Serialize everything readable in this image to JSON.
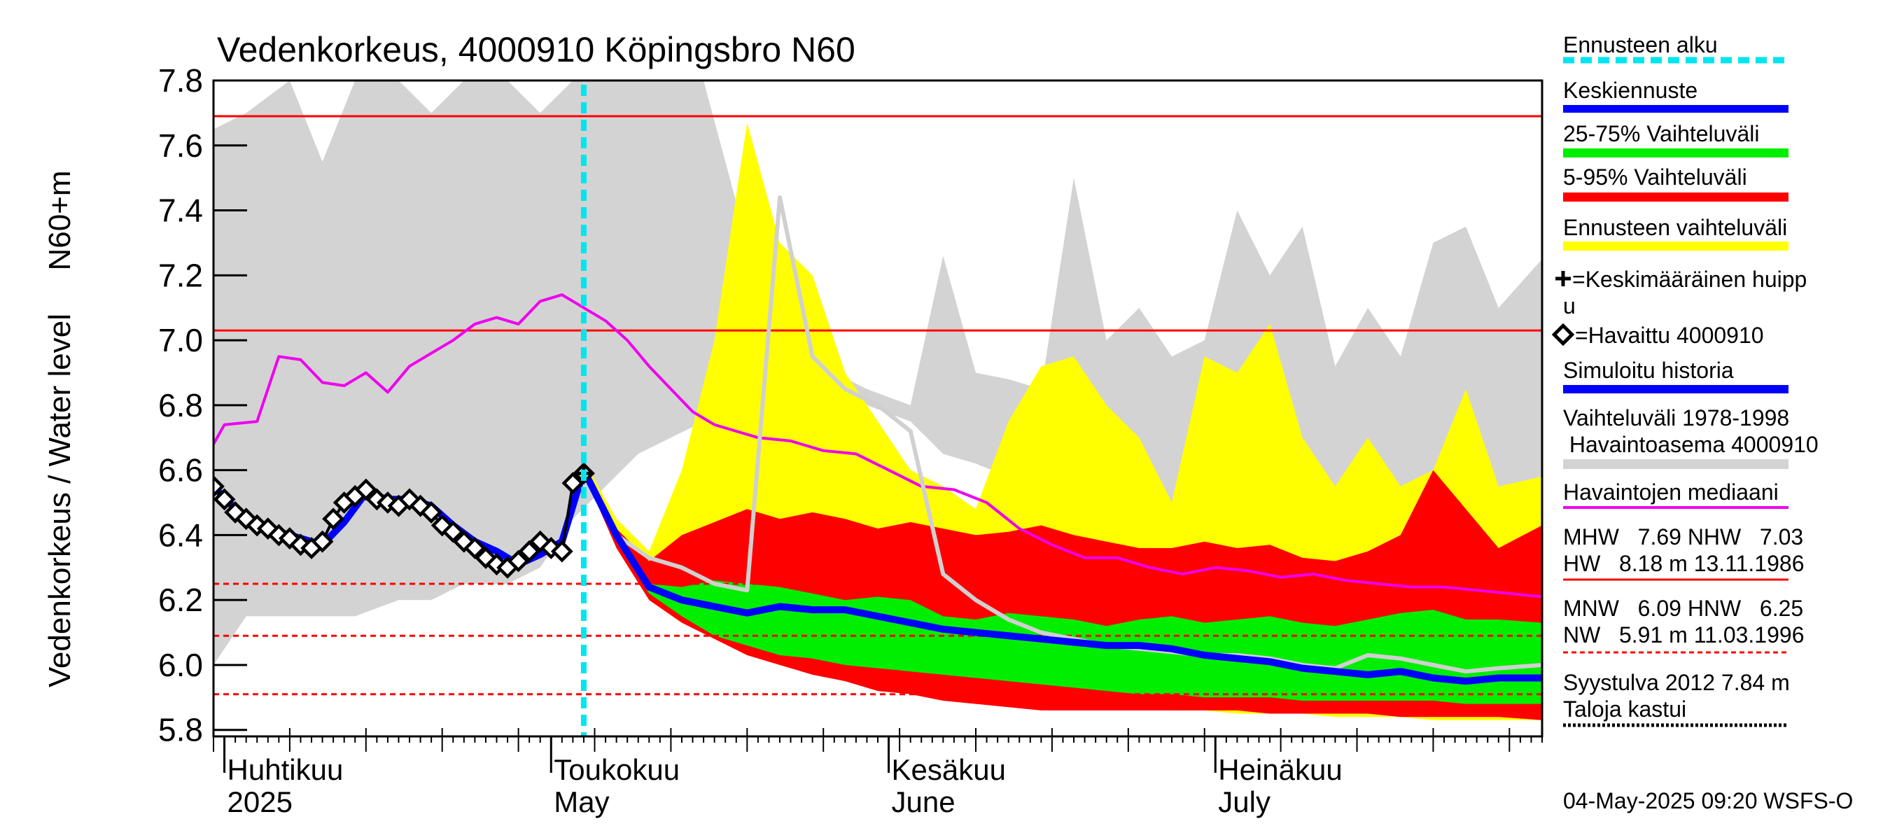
{
  "chart_data": {
    "type": "area",
    "title": "Vedenkorkeus, 4000910 Köpingsbro N60",
    "ylabel": "Vedenkorkeus / Water level",
    "ylabel_unit": "N60+m",
    "ylim": [
      5.78,
      7.8
    ],
    "yticks": [
      5.8,
      6.0,
      6.2,
      6.4,
      6.6,
      6.8,
      7.0,
      7.2,
      7.4,
      7.6,
      7.8
    ],
    "ytick_labels": [
      "5.8",
      "6.0",
      "6.2",
      "6.4",
      "6.6",
      "6.8",
      "7.0",
      "7.2",
      "7.4",
      "7.6",
      "7.8"
    ],
    "x_range": [
      "2025-03-31",
      "2025-07-31"
    ],
    "forecast_start": "2025-05-04",
    "x_month_labels": [
      {
        "date": "2025-04-01",
        "fi": "Huhtikuu",
        "en": "2025"
      },
      {
        "date": "2025-05-01",
        "fi": "Toukokuu",
        "en": "May"
      },
      {
        "date": "2025-06-01",
        "fi": "Kesäkuu",
        "en": "June"
      },
      {
        "date": "2025-07-01",
        "fi": "Heinäkuu",
        "en": "July"
      }
    ],
    "reference_lines": [
      {
        "label": "MHW",
        "value": 7.69,
        "style": "solid"
      },
      {
        "label": "NHW",
        "value": 7.03,
        "style": "solid"
      },
      {
        "label": "HNW",
        "value": 6.25,
        "style": "dashed"
      },
      {
        "label": "MNW",
        "value": 6.09,
        "style": "dashed"
      },
      {
        "label": "NW",
        "value": 5.91,
        "style": "dashed"
      }
    ],
    "series": [
      {
        "name": "Vaihteluväli 1978-1998 Havaintoasema 4000910",
        "color": "#d3d3d3",
        "x": [
          "2025-03-31",
          "2025-04-03",
          "2025-04-07",
          "2025-04-10",
          "2025-04-13",
          "2025-04-17",
          "2025-04-20",
          "2025-04-23",
          "2025-04-27",
          "2025-04-30",
          "2025-05-03",
          "2025-05-06",
          "2025-05-09",
          "2025-05-12",
          "2025-05-15",
          "2025-05-19",
          "2025-05-23",
          "2025-05-27",
          "2025-05-30",
          "2025-06-03",
          "2025-06-06",
          "2025-06-09",
          "2025-06-12",
          "2025-06-15",
          "2025-06-18",
          "2025-06-21",
          "2025-06-24",
          "2025-06-27",
          "2025-06-30",
          "2025-07-03",
          "2025-07-06",
          "2025-07-09",
          "2025-07-12",
          "2025-07-15",
          "2025-07-18",
          "2025-07-21",
          "2025-07-24",
          "2025-07-27",
          "2025-07-31"
        ],
        "upper": [
          7.65,
          7.7,
          7.8,
          7.55,
          7.8,
          7.8,
          7.7,
          7.8,
          7.8,
          7.7,
          7.8,
          7.8,
          7.8,
          7.8,
          7.8,
          7.3,
          7.05,
          6.9,
          6.85,
          6.8,
          7.26,
          6.9,
          6.88,
          6.85,
          7.5,
          7.0,
          7.1,
          6.95,
          7.0,
          7.4,
          7.2,
          7.35,
          6.92,
          7.1,
          6.95,
          7.3,
          7.35,
          7.1,
          7.25
        ],
        "lower": [
          6.0,
          6.15,
          6.15,
          6.15,
          6.15,
          6.2,
          6.2,
          6.25,
          6.25,
          6.3,
          6.45,
          6.55,
          6.65,
          6.7,
          6.75,
          6.78,
          6.78,
          6.8,
          6.8,
          6.75,
          6.65,
          6.62,
          6.58,
          6.55,
          6.52,
          6.5,
          6.48,
          6.46,
          6.45,
          6.44,
          6.44,
          6.43,
          6.42,
          6.41,
          6.4,
          6.4,
          6.4,
          6.4,
          6.4
        ]
      },
      {
        "name": "Ennusteen vaihteluväli",
        "color": "#ffff00",
        "x": [
          "2025-05-04",
          "2025-05-07",
          "2025-05-10",
          "2025-05-13",
          "2025-05-16",
          "2025-05-19",
          "2025-05-22",
          "2025-05-25",
          "2025-05-28",
          "2025-05-31",
          "2025-06-03",
          "2025-06-06",
          "2025-06-09",
          "2025-06-12",
          "2025-06-15",
          "2025-06-18",
          "2025-06-21",
          "2025-06-24",
          "2025-06-27",
          "2025-06-30",
          "2025-07-03",
          "2025-07-06",
          "2025-07-09",
          "2025-07-12",
          "2025-07-15",
          "2025-07-18",
          "2025-07-21",
          "2025-07-24",
          "2025-07-27",
          "2025-07-31"
        ],
        "upper": [
          6.63,
          6.45,
          6.35,
          6.6,
          7.0,
          7.67,
          7.3,
          7.2,
          6.9,
          6.75,
          6.6,
          6.55,
          6.48,
          6.75,
          6.92,
          6.95,
          6.8,
          6.7,
          6.5,
          6.95,
          6.9,
          7.05,
          6.7,
          6.55,
          6.7,
          6.55,
          6.6,
          6.85,
          6.55,
          6.58
        ],
        "lower": [
          6.6,
          6.38,
          6.22,
          6.15,
          6.1,
          6.06,
          6.03,
          6.01,
          5.98,
          5.96,
          5.94,
          5.92,
          5.91,
          5.9,
          5.89,
          5.88,
          5.87,
          5.87,
          5.86,
          5.86,
          5.85,
          5.85,
          5.85,
          5.84,
          5.84,
          5.84,
          5.83,
          5.83,
          5.83,
          5.83
        ]
      },
      {
        "name": "5-95% Vaihteluväli",
        "color": "#ff0000",
        "x": [
          "2025-05-04",
          "2025-05-07",
          "2025-05-10",
          "2025-05-13",
          "2025-05-16",
          "2025-05-19",
          "2025-05-22",
          "2025-05-25",
          "2025-05-28",
          "2025-05-31",
          "2025-06-03",
          "2025-06-06",
          "2025-06-09",
          "2025-06-12",
          "2025-06-15",
          "2025-06-18",
          "2025-06-21",
          "2025-06-24",
          "2025-06-27",
          "2025-06-30",
          "2025-07-03",
          "2025-07-06",
          "2025-07-09",
          "2025-07-12",
          "2025-07-15",
          "2025-07-18",
          "2025-07-21",
          "2025-07-24",
          "2025-07-27",
          "2025-07-31"
        ],
        "upper": [
          6.61,
          6.42,
          6.32,
          6.4,
          6.44,
          6.48,
          6.45,
          6.47,
          6.45,
          6.42,
          6.44,
          6.42,
          6.4,
          6.41,
          6.43,
          6.4,
          6.38,
          6.36,
          6.36,
          6.38,
          6.36,
          6.37,
          6.33,
          6.32,
          6.35,
          6.4,
          6.6,
          6.48,
          6.36,
          6.43
        ],
        "lower": [
          6.59,
          6.36,
          6.2,
          6.13,
          6.08,
          6.03,
          6.0,
          5.97,
          5.95,
          5.92,
          5.91,
          5.89,
          5.88,
          5.87,
          5.86,
          5.86,
          5.86,
          5.86,
          5.86,
          5.86,
          5.86,
          5.85,
          5.85,
          5.85,
          5.85,
          5.84,
          5.84,
          5.84,
          5.84,
          5.83
        ]
      },
      {
        "name": "25-75% Vaihteluväli",
        "color": "#00ee00",
        "x": [
          "2025-05-04",
          "2025-05-07",
          "2025-05-10",
          "2025-05-13",
          "2025-05-16",
          "2025-05-19",
          "2025-05-22",
          "2025-05-25",
          "2025-05-28",
          "2025-05-31",
          "2025-06-03",
          "2025-06-06",
          "2025-06-09",
          "2025-06-12",
          "2025-06-15",
          "2025-06-18",
          "2025-06-21",
          "2025-06-24",
          "2025-06-27",
          "2025-06-30",
          "2025-07-03",
          "2025-07-06",
          "2025-07-09",
          "2025-07-12",
          "2025-07-15",
          "2025-07-18",
          "2025-07-21",
          "2025-07-24",
          "2025-07-27",
          "2025-07-31"
        ],
        "upper": [
          6.6,
          6.4,
          6.25,
          6.24,
          6.26,
          6.25,
          6.24,
          6.22,
          6.2,
          6.21,
          6.2,
          6.15,
          6.14,
          6.16,
          6.15,
          6.14,
          6.12,
          6.14,
          6.15,
          6.13,
          6.14,
          6.15,
          6.13,
          6.12,
          6.14,
          6.16,
          6.17,
          6.14,
          6.14,
          6.13
        ],
        "lower": [
          6.6,
          6.38,
          6.22,
          6.15,
          6.09,
          6.06,
          6.03,
          6.02,
          6.0,
          5.99,
          5.98,
          5.97,
          5.96,
          5.95,
          5.94,
          5.93,
          5.92,
          5.91,
          5.91,
          5.9,
          5.9,
          5.9,
          5.89,
          5.89,
          5.89,
          5.89,
          5.89,
          5.88,
          5.88,
          5.88
        ]
      },
      {
        "name": "Havaintojen mediaani",
        "color": "#ee00ee",
        "x": [
          "2025-03-31",
          "2025-04-01",
          "2025-04-04",
          "2025-04-06",
          "2025-04-08",
          "2025-04-10",
          "2025-04-12",
          "2025-04-14",
          "2025-04-16",
          "2025-04-18",
          "2025-04-20",
          "2025-04-22",
          "2025-04-24",
          "2025-04-26",
          "2025-04-28",
          "2025-04-30",
          "2025-05-02",
          "2025-05-04",
          "2025-05-06",
          "2025-05-08",
          "2025-05-10",
          "2025-05-12",
          "2025-05-14",
          "2025-05-16",
          "2025-05-18",
          "2025-05-20",
          "2025-05-23",
          "2025-05-26",
          "2025-05-29",
          "2025-06-01",
          "2025-06-04",
          "2025-06-07",
          "2025-06-10",
          "2025-06-13",
          "2025-06-16",
          "2025-06-19",
          "2025-06-22",
          "2025-06-25",
          "2025-06-28",
          "2025-07-01",
          "2025-07-04",
          "2025-07-07",
          "2025-07-10",
          "2025-07-13",
          "2025-07-16",
          "2025-07-19",
          "2025-07-22",
          "2025-07-25",
          "2025-07-28",
          "2025-07-31"
        ],
        "y": [
          6.68,
          6.74,
          6.75,
          6.95,
          6.94,
          6.87,
          6.86,
          6.9,
          6.84,
          6.92,
          6.96,
          7.0,
          7.05,
          7.07,
          7.05,
          7.12,
          7.14,
          7.1,
          7.06,
          7.0,
          6.92,
          6.85,
          6.78,
          6.74,
          6.72,
          6.7,
          6.69,
          6.66,
          6.65,
          6.6,
          6.55,
          6.54,
          6.5,
          6.42,
          6.37,
          6.33,
          6.33,
          6.3,
          6.28,
          6.3,
          6.29,
          6.27,
          6.28,
          6.26,
          6.25,
          6.24,
          6.24,
          6.23,
          6.22,
          6.21
        ]
      },
      {
        "name": "Simuloitu historia",
        "color": "#0000ff",
        "x": [
          "2025-03-31",
          "2025-04-02",
          "2025-04-04",
          "2025-04-06",
          "2025-04-08",
          "2025-04-10",
          "2025-04-12",
          "2025-04-14",
          "2025-04-16",
          "2025-04-18",
          "2025-04-20",
          "2025-04-22",
          "2025-04-24",
          "2025-04-26",
          "2025-04-28",
          "2025-04-30",
          "2025-05-02",
          "2025-05-04"
        ],
        "y": [
          6.55,
          6.48,
          6.44,
          6.41,
          6.39,
          6.37,
          6.44,
          6.53,
          6.51,
          6.51,
          6.49,
          6.43,
          6.38,
          6.35,
          6.31,
          6.34,
          6.38,
          6.6
        ]
      },
      {
        "name": "Keskiennuste",
        "color": "#0000ff",
        "x": [
          "2025-05-04",
          "2025-05-07",
          "2025-05-10",
          "2025-05-13",
          "2025-05-16",
          "2025-05-19",
          "2025-05-22",
          "2025-05-25",
          "2025-05-28",
          "2025-05-31",
          "2025-06-03",
          "2025-06-06",
          "2025-06-09",
          "2025-06-12",
          "2025-06-15",
          "2025-06-18",
          "2025-06-21",
          "2025-06-24",
          "2025-06-27",
          "2025-06-30",
          "2025-07-03",
          "2025-07-06",
          "2025-07-09",
          "2025-07-12",
          "2025-07-15",
          "2025-07-18",
          "2025-07-21",
          "2025-07-24",
          "2025-07-27",
          "2025-07-31"
        ],
        "y": [
          6.6,
          6.4,
          6.24,
          6.2,
          6.18,
          6.16,
          6.18,
          6.17,
          6.17,
          6.15,
          6.13,
          6.11,
          6.1,
          6.09,
          6.08,
          6.07,
          6.06,
          6.06,
          6.05,
          6.03,
          6.02,
          6.01,
          5.99,
          5.98,
          5.97,
          5.98,
          5.96,
          5.95,
          5.96,
          5.96
        ]
      },
      {
        "name": "Simulated median (grey)",
        "color": "#d0d0d0",
        "x": [
          "2025-05-04",
          "2025-05-07",
          "2025-05-10",
          "2025-05-13",
          "2025-05-16",
          "2025-05-19",
          "2025-05-22",
          "2025-05-25",
          "2025-05-28",
          "2025-05-31",
          "2025-06-03",
          "2025-06-06",
          "2025-06-09",
          "2025-06-12",
          "2025-06-15",
          "2025-06-18",
          "2025-06-21",
          "2025-06-24",
          "2025-06-27",
          "2025-06-30",
          "2025-07-03",
          "2025-07-06",
          "2025-07-09",
          "2025-07-12",
          "2025-07-15",
          "2025-07-18",
          "2025-07-21",
          "2025-07-24",
          "2025-07-27",
          "2025-07-31"
        ],
        "y": [
          6.6,
          6.4,
          6.33,
          6.3,
          6.25,
          6.23,
          7.44,
          6.95,
          6.85,
          6.8,
          6.72,
          6.28,
          6.2,
          6.14,
          6.1,
          6.08,
          6.06,
          6.05,
          6.04,
          6.03,
          6.03,
          6.02,
          6.0,
          5.99,
          6.03,
          6.02,
          6.0,
          5.98,
          5.99,
          6.0
        ]
      },
      {
        "name": "Havaittu 4000910",
        "color": "#000000",
        "x": [
          "2025-03-31",
          "2025-04-01",
          "2025-04-02",
          "2025-04-03",
          "2025-04-04",
          "2025-04-05",
          "2025-04-06",
          "2025-04-07",
          "2025-04-08",
          "2025-04-09",
          "2025-04-10",
          "2025-04-11",
          "2025-04-12",
          "2025-04-13",
          "2025-04-14",
          "2025-04-15",
          "2025-04-16",
          "2025-04-17",
          "2025-04-18",
          "2025-04-19",
          "2025-04-20",
          "2025-04-21",
          "2025-04-22",
          "2025-04-23",
          "2025-04-24",
          "2025-04-25",
          "2025-04-26",
          "2025-04-27",
          "2025-04-28",
          "2025-04-29",
          "2025-04-30",
          "2025-05-01",
          "2025-05-02",
          "2025-05-03",
          "2025-05-04"
        ],
        "y": [
          6.55,
          6.51,
          6.47,
          6.45,
          6.43,
          6.42,
          6.4,
          6.39,
          6.37,
          6.36,
          6.38,
          6.45,
          6.5,
          6.52,
          6.54,
          6.51,
          6.5,
          6.49,
          6.51,
          6.49,
          6.47,
          6.43,
          6.41,
          6.38,
          6.36,
          6.33,
          6.31,
          6.3,
          6.32,
          6.35,
          6.38,
          6.36,
          6.35,
          6.56,
          6.59
        ]
      }
    ],
    "peak_marker": {
      "name": "Keskimääräinen huippu",
      "x": "2025-05-04",
      "y": 6.59
    }
  },
  "legend": {
    "forecast_start": "Ennusteen alku",
    "mean_forecast": "Keskiennuste",
    "range_25_75": "25-75% Vaihteluväli",
    "range_5_95": "5-95% Vaihteluväli",
    "forecast_range": "Ennusteen vaihteluväli",
    "avg_peak_line1": "=Keskimääräinen huipp",
    "avg_peak_line2": "u",
    "observed": "=Havaittu 4000910",
    "sim_history": "Simuloitu historia",
    "hist_range_line1": "Vaihteluväli 1978-1998",
    "hist_range_line2": " Havaintoasema 4000910",
    "obs_median": "Havaintojen mediaani",
    "mhw_line": "MHW   7.69 NHW   7.03",
    "hw_line": "HW   8.18 m 13.11.1986",
    "mnw_line": "MNW   6.09 HNW   6.25",
    "nw_line": "NW   5.91 m 11.03.1996",
    "storm_line": "Syystulva 2012 7.84 m",
    "flood_line": "Taloja kastui"
  },
  "footer": "04-May-2025 09:20 WSFS-O",
  "colors": {
    "grey_band": "#d3d3d3",
    "yellow": "#ffff00",
    "red": "#ff0000",
    "green": "#00ee00",
    "blue": "#0000ff",
    "magenta": "#ee00ee",
    "cyan": "#00e5ee",
    "black": "#000000"
  }
}
